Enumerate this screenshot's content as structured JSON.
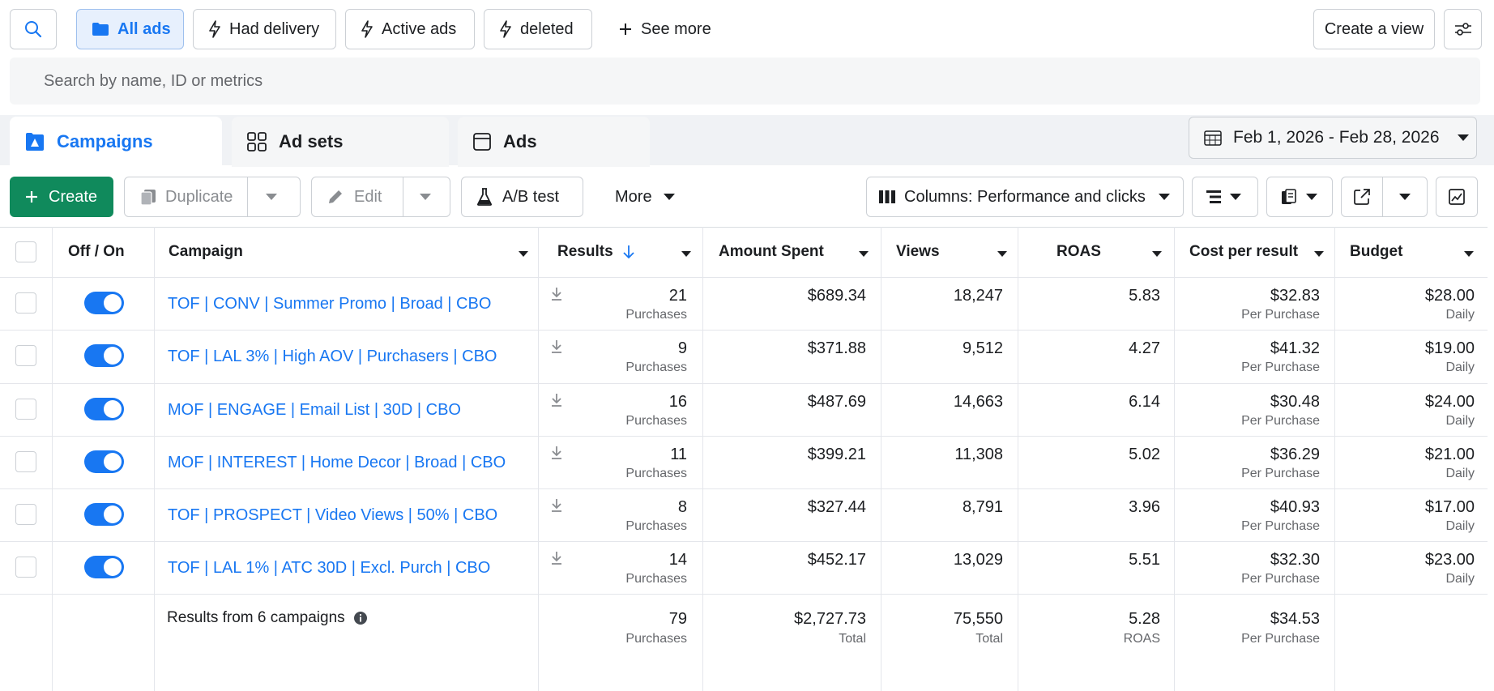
{
  "filters": {
    "search_icon": "search-icon",
    "buttons": [
      {
        "label": "All ads",
        "icon": "folder-icon",
        "active": true
      },
      {
        "label": "Had delivery",
        "icon": "lightning-icon"
      },
      {
        "label": "Active ads",
        "icon": "lightning-icon"
      },
      {
        "label": "deleted",
        "icon": "lightning-icon"
      }
    ],
    "see_more": "See more",
    "create_view": "Create a view"
  },
  "search": {
    "placeholder": "Search by name, ID or metrics"
  },
  "tabs": [
    {
      "label": "Campaigns",
      "icon": "campaign-icon",
      "active": true
    },
    {
      "label": "Ad sets",
      "icon": "grid-icon"
    },
    {
      "label": "Ads",
      "icon": "ad-icon"
    }
  ],
  "date_range": "Feb 1, 2026 - Feb 28, 2026",
  "toolbar": {
    "create": "Create",
    "duplicate": "Duplicate",
    "edit": "Edit",
    "ab_test": "A/B test",
    "more": "More",
    "columns": "Columns: Performance and clicks"
  },
  "table": {
    "headers": {
      "off_on": "Off / On",
      "campaign": "Campaign",
      "results": "Results",
      "amount_spent": "Amount Spent",
      "views": "Views",
      "roas": "ROAS",
      "cost_per_result": "Cost per result",
      "budget": "Budget"
    },
    "rows": [
      {
        "name": "TOF | CONV | Summer Promo | Broad | CBO",
        "results": "21",
        "results_sub": "Purchases",
        "spent": "$689.34",
        "views": "18,247",
        "roas": "5.83",
        "cpr": "$32.83",
        "cpr_sub": "Per Purchase",
        "budget": "$28.00",
        "budget_sub": "Daily",
        "on": true
      },
      {
        "name": "TOF | LAL 3% | High AOV | Purchasers | CBO",
        "results": "9",
        "results_sub": "Purchases",
        "spent": "$371.88",
        "views": "9,512",
        "roas": "4.27",
        "cpr": "$41.32",
        "cpr_sub": "Per Purchase",
        "budget": "$19.00",
        "budget_sub": "Daily",
        "on": true
      },
      {
        "name": "MOF | ENGAGE | Email List | 30D | CBO",
        "results": "16",
        "results_sub": "Purchases",
        "spent": "$487.69",
        "views": "14,663",
        "roas": "6.14",
        "cpr": "$30.48",
        "cpr_sub": "Per Purchase",
        "budget": "$24.00",
        "budget_sub": "Daily",
        "on": true
      },
      {
        "name": "MOF | INTEREST | Home Decor | Broad | CBO",
        "results": "11",
        "results_sub": "Purchases",
        "spent": "$399.21",
        "views": "11,308",
        "roas": "5.02",
        "cpr": "$36.29",
        "cpr_sub": "Per Purchase",
        "budget": "$21.00",
        "budget_sub": "Daily",
        "on": true
      },
      {
        "name": "TOF | PROSPECT | Video Views | 50% | CBO",
        "results": "8",
        "results_sub": "Purchases",
        "spent": "$327.44",
        "views": "8,791",
        "roas": "3.96",
        "cpr": "$40.93",
        "cpr_sub": "Per Purchase",
        "budget": "$17.00",
        "budget_sub": "Daily",
        "on": true
      },
      {
        "name": "TOF | LAL 1% | ATC 30D | Excl. Purch | CBO",
        "results": "14",
        "results_sub": "Purchases",
        "spent": "$452.17",
        "views": "13,029",
        "roas": "5.51",
        "cpr": "$32.30",
        "cpr_sub": "Per Purchase",
        "budget": "$23.00",
        "budget_sub": "Daily",
        "on": true
      }
    ],
    "summary": {
      "label": "Results from 6 campaigns",
      "results": "79",
      "results_sub": "Purchases",
      "spent": "$2,727.73",
      "spent_sub": "Total",
      "views": "75,550",
      "views_sub": "Total",
      "roas": "5.28",
      "roas_sub": "ROAS",
      "cpr": "$34.53",
      "cpr_sub": "Per Purchase"
    }
  },
  "colors": {
    "accent": "#1877f2",
    "create_green": "#108a5c"
  }
}
